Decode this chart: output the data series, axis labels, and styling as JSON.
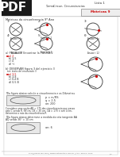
{
  "bg_color": "#ffffff",
  "header_bg": "#1a1a1a",
  "pdf_text": "PDF",
  "header_right_text": "Lista 1",
  "subject_label": "Turma",
  "subject_value": "Circun. Circunstancias",
  "accent_color": "#cc0000",
  "body_text_color": "#222222",
  "line_color": "#aaaaaa",
  "circle_line_color": "#333333",
  "footer_text": "prof@educacao.com | www.matematica.com.br | Ano: Turma: 2016",
  "page_bg": "#f5f5f5"
}
